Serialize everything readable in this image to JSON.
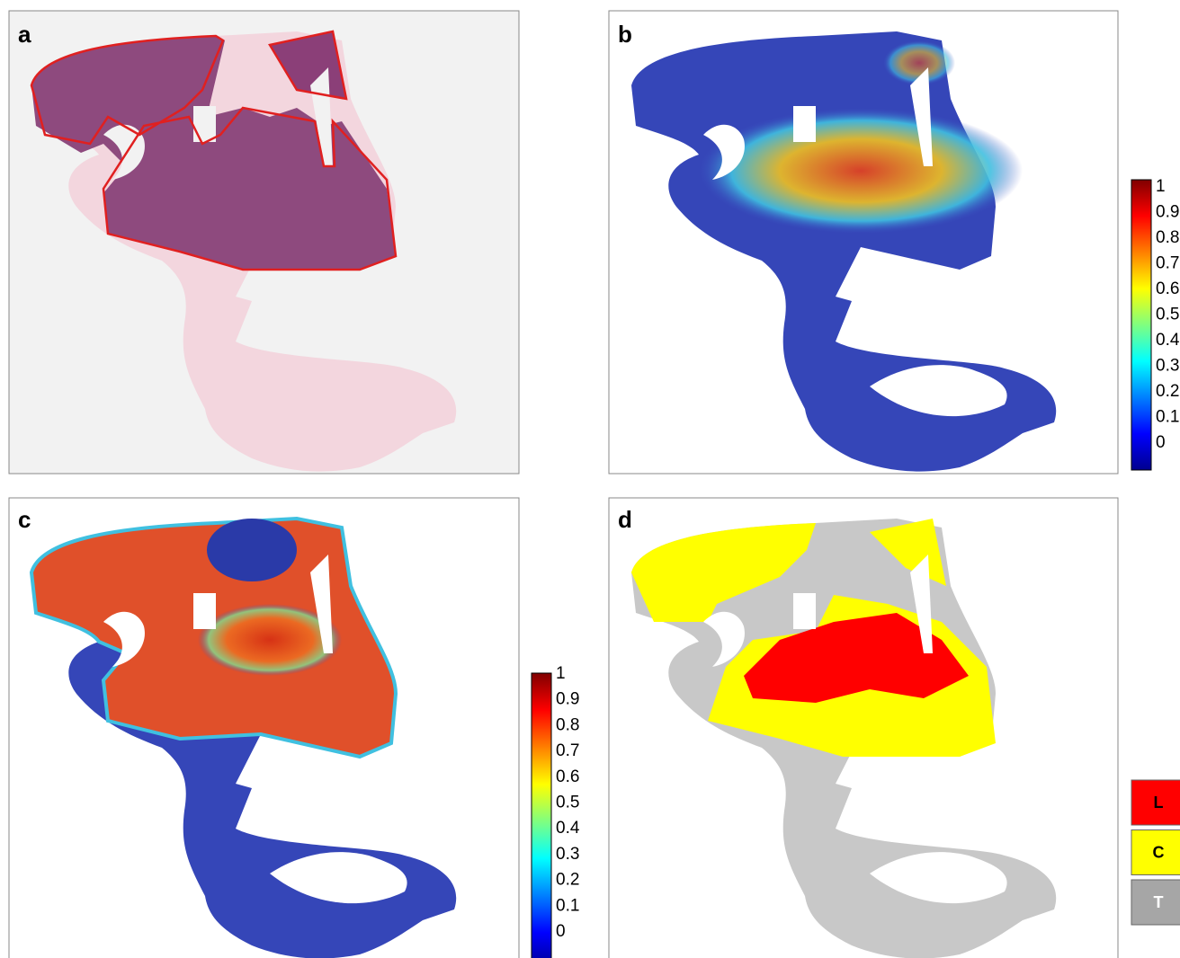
{
  "panels": [
    {
      "label": "a"
    },
    {
      "label": "b"
    },
    {
      "label": "c"
    },
    {
      "label": "d"
    }
  ],
  "colorbars": [
    {
      "ticks": [
        1,
        0.9,
        0.8,
        0.7,
        0.6,
        0.5,
        0.4,
        0.3,
        0.2,
        0.1,
        0
      ]
    },
    {
      "ticks": [
        1,
        0.9,
        0.8,
        0.7,
        0.6,
        0.5,
        0.4,
        0.3,
        0.2,
        0.1,
        0
      ]
    }
  ],
  "legend": [
    {
      "label": "L",
      "color": "#ff0000"
    },
    {
      "label": "C",
      "color": "#ffff00"
    },
    {
      "label": "T",
      "color": "#a6a6a6"
    }
  ]
}
